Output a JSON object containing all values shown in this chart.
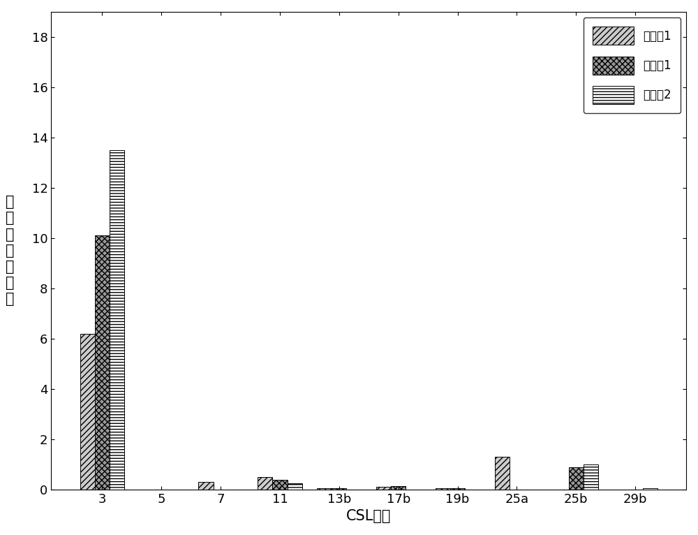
{
  "categories": [
    "3",
    "5",
    "7",
    "11",
    "13b",
    "17b",
    "19b",
    "25a",
    "25b",
    "29b"
  ],
  "series": {
    "实施例1": [
      6.2,
      0.0,
      0.3,
      0.5,
      0.05,
      0.1,
      0.05,
      1.3,
      0.0,
      0.0
    ],
    "比较例1": [
      10.1,
      0.0,
      0.0,
      0.4,
      0.05,
      0.15,
      0.05,
      0.0,
      0.9,
      0.0
    ],
    "比较例2": [
      13.5,
      0.0,
      0.0,
      0.25,
      0.0,
      0.0,
      0.0,
      0.0,
      1.0,
      0.05
    ]
  },
  "series_order": [
    "实施例1",
    "比较例1",
    "比较例2"
  ],
  "ylabel_chars": [
    "频",
    "率",
    "分",
    "布",
    "百",
    "分",
    "比"
  ],
  "xlabel": "CSL界面",
  "ylim": [
    0,
    19
  ],
  "yticks": [
    0,
    2,
    4,
    6,
    8,
    10,
    12,
    14,
    16,
    18
  ],
  "bar_width": 0.25,
  "hatch_patterns": [
    "////",
    "\\\\\\\\////",
    "----"
  ],
  "facecolors": [
    "#cccccc",
    "#999999",
    "#ffffff"
  ],
  "edgecolors": [
    "#000000",
    "#000000",
    "#000000"
  ],
  "background_color": "#ffffff",
  "axis_fontsize": 15,
  "tick_fontsize": 13,
  "legend_fontsize": 12
}
